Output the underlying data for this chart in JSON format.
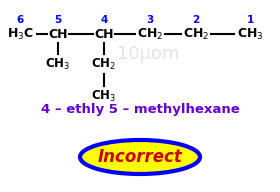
{
  "bg_color": "#ffffff",
  "title_text": "4 – ethly 5 – methylhexane",
  "title_color": "#6600cc",
  "incorrect_text": "Incorrect",
  "incorrect_text_color": "#cc0000",
  "ellipse_fill": "#ffff00",
  "ellipse_edge": "#0000ff",
  "watermark": "10μom",
  "watermark_color": "#cccccc",
  "numbers": [
    "6",
    "5",
    "4",
    "3",
    "2",
    "1"
  ],
  "number_color": "#0000ff",
  "bond_color": "#000000",
  "atom_color": "#000000",
  "chain_labels": [
    "H₃C",
    "CH",
    "CH",
    "CH₂",
    "CH₂",
    "CH₃"
  ],
  "branch5_label": "CH₃",
  "branch4_label1": "CH₂",
  "branch4_label2": "CH₃"
}
